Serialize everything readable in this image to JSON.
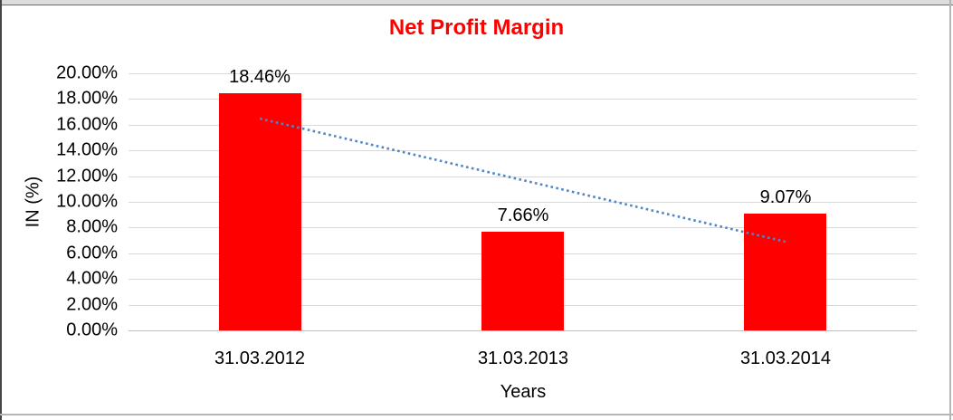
{
  "colors": {
    "bar": "#FF0000",
    "title": "#FF0000",
    "gridline": "#D9D9D9",
    "axis_line": "#BFBFBF",
    "trendline": "#4F86C6",
    "text": "#000000"
  },
  "chart_data": {
    "type": "bar",
    "title": "Net Profit Margin",
    "xlabel": "Years",
    "ylabel": "IN (%)",
    "categories": [
      "31.03.2012",
      "31.03.2013",
      "31.03.2014"
    ],
    "values": [
      18.46,
      7.66,
      9.07
    ],
    "data_labels": [
      "18.46%",
      "7.66%",
      "9.07%"
    ],
    "ylim": [
      0,
      20
    ],
    "ytick_step": 2,
    "ytick_labels": [
      "0.00%",
      "2.00%",
      "4.00%",
      "6.00%",
      "8.00%",
      "10.00%",
      "12.00%",
      "14.00%",
      "16.00%",
      "18.00%",
      "20.00%"
    ],
    "grid": true,
    "legend": "none",
    "trendline": {
      "type": "linear",
      "style": "dotted",
      "start_value": 16.48,
      "end_value": 6.9
    }
  }
}
